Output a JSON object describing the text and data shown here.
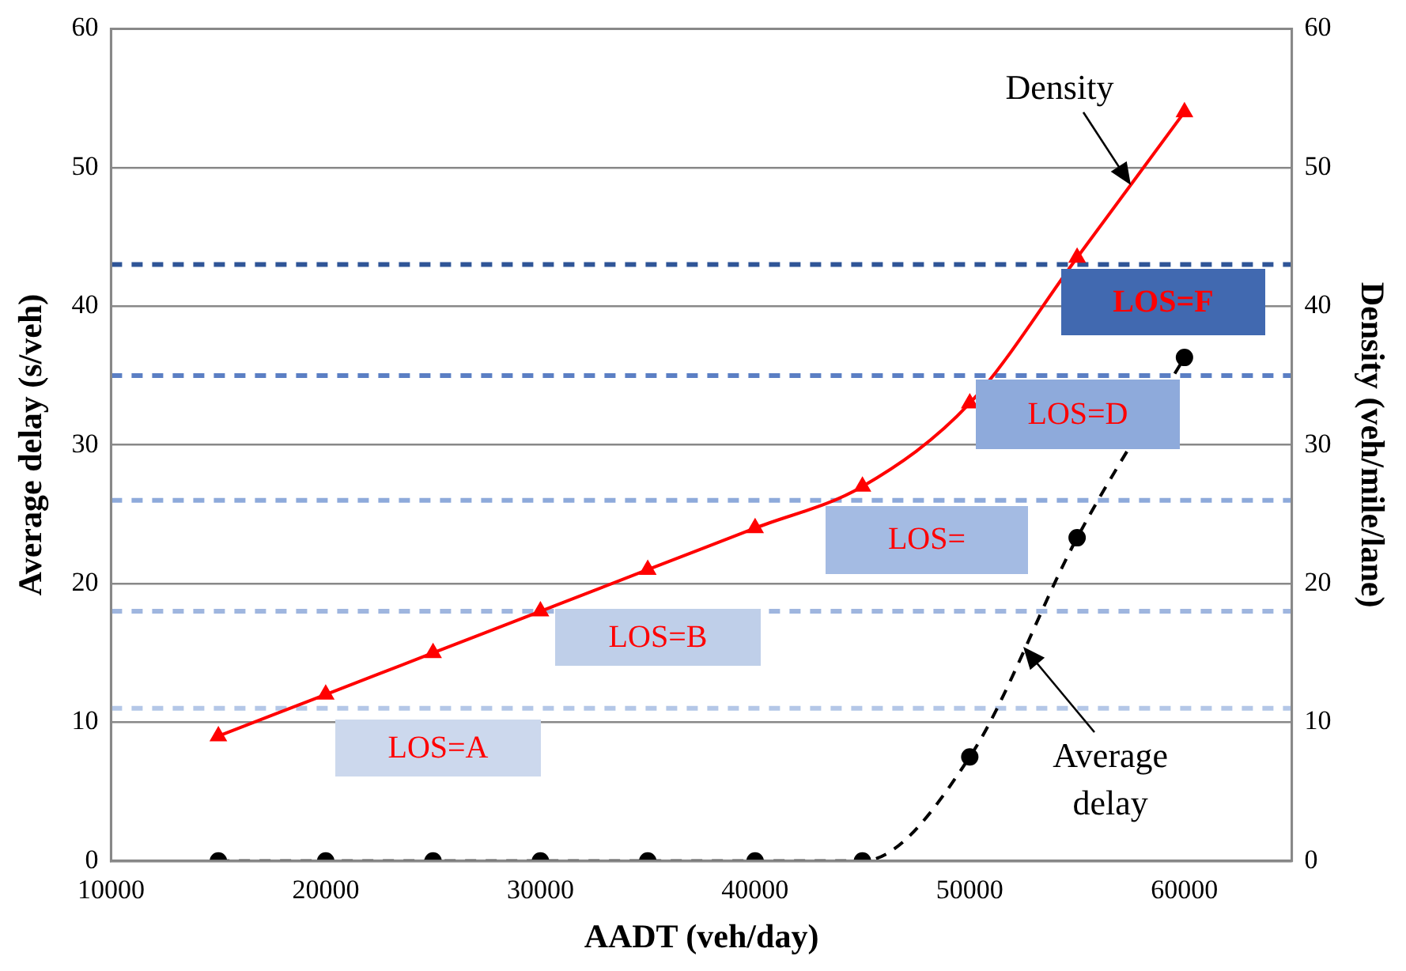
{
  "chart_data": {
    "type": "line",
    "xlabel": "AADT (veh/day)",
    "ylabel": "Average delay (s/veh)",
    "y2label": "Density (veh/mile/lane)",
    "x": [
      15000,
      20000,
      25000,
      30000,
      35000,
      40000,
      45000,
      50000,
      55000,
      60000
    ],
    "series": [
      {
        "name": "Average delay",
        "color": "#000000",
        "axis": "y",
        "marker": "circle",
        "line_style": "dashed",
        "values": [
          0,
          0,
          0,
          0,
          0,
          0,
          0,
          7.5,
          23.3,
          36.3
        ]
      },
      {
        "name": "Density",
        "color": "#ff0000",
        "axis": "y2",
        "marker": "triangle",
        "line_style": "solid",
        "values": [
          9,
          12,
          15,
          18,
          21,
          24,
          27,
          33,
          43.5,
          54
        ]
      }
    ],
    "xlim": [
      10000,
      65000
    ],
    "xticks": [
      10000,
      20000,
      30000,
      40000,
      50000,
      60000
    ],
    "ylim": [
      0,
      60
    ],
    "yticks": [
      0,
      10,
      20,
      30,
      40,
      50,
      60
    ],
    "y2lim": [
      0,
      60
    ],
    "y2ticks": [
      0,
      10,
      20,
      30,
      40,
      50,
      60
    ],
    "grid": "y",
    "ref_lines": [
      {
        "axis": "y",
        "value": 11,
        "color": "#b4c7e7",
        "line_style": "dashed"
      },
      {
        "axis": "y",
        "value": 18,
        "color": "#9fb6df",
        "line_style": "dashed"
      },
      {
        "axis": "y",
        "value": 26,
        "color": "#8eaadb",
        "line_style": "dashed"
      },
      {
        "axis": "y",
        "value": 35,
        "color": "#5b7fc4",
        "line_style": "dashed"
      },
      {
        "axis": "y",
        "value": 43,
        "color": "#2f5597",
        "line_style": "dashed"
      }
    ],
    "annotations": [
      "LOS=A",
      "LOS=B",
      "LOS=",
      "LOS=D",
      "LOS=F"
    ]
  }
}
